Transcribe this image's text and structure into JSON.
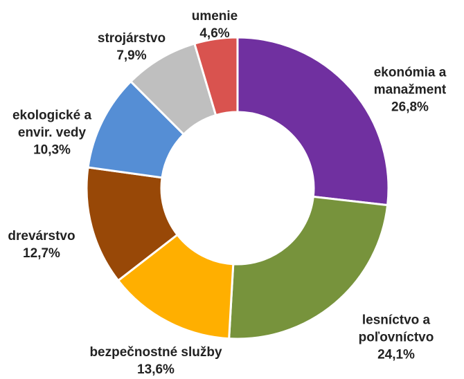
{
  "chart_data": {
    "type": "donut",
    "categories": [
      "ekonómia a\nmanažment",
      "lesníctvo a\npoľovníctvo",
      "bezpečnostné služby",
      "drevárstvo",
      "ekologické a\nenvir. vedy",
      "strojárstvo",
      "umenie"
    ],
    "values": [
      26.8,
      24.1,
      13.6,
      12.7,
      10.3,
      7.9,
      4.6
    ],
    "value_labels": [
      "26,8%",
      "24,1%",
      "13,6%",
      "12,7%",
      "10,3%",
      "7,9%",
      "4,6%"
    ],
    "colors": [
      "#7030a0",
      "#77933c",
      "#ffaf00",
      "#984807",
      "#558ed5",
      "#bfbfbf",
      "#d9534f"
    ]
  }
}
